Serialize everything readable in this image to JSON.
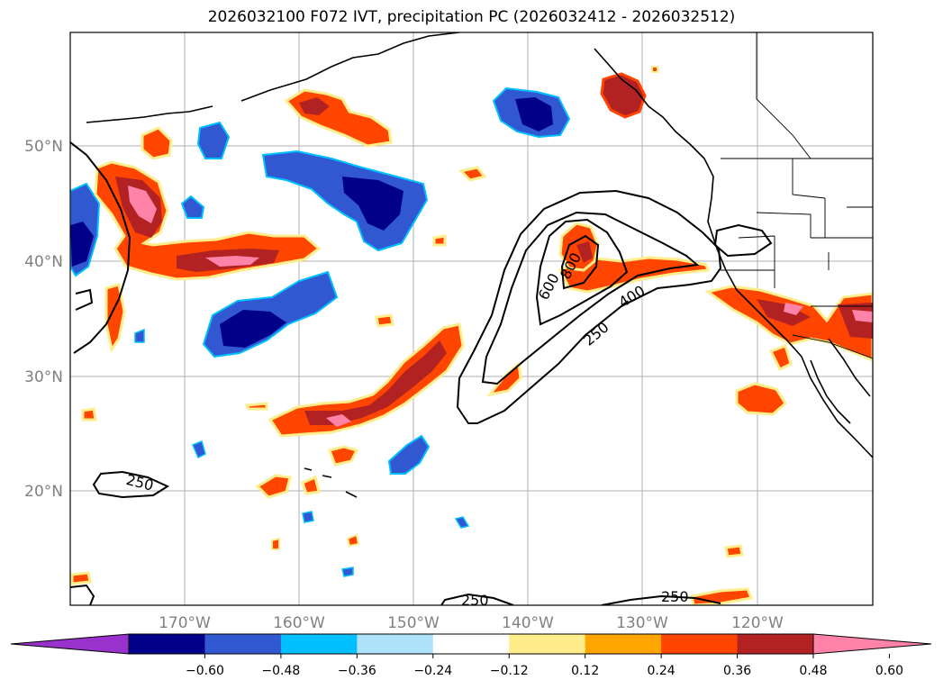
{
  "title": "2026032100 F072 IVT, precipitation PC (2026032412 - 2026032512)",
  "lat_labels": [
    "50°N",
    "40°N",
    "30°N",
    "20°N"
  ],
  "lon_labels": [
    "170°W",
    "160°W",
    "150°W",
    "140°W",
    "130°W",
    "120°W"
  ],
  "colorbar": {
    "colors": [
      "#9932cc",
      "#00008b",
      "#3158d0",
      "#00bfff",
      "#aee2fa",
      "#ffffff",
      "#ffec8b",
      "#ffa500",
      "#ff4500",
      "#b22222",
      "#ff83a8"
    ],
    "tick_labels": [
      "−0.60",
      "−0.48",
      "−0.36",
      "−0.24",
      "−0.12",
      "0.12",
      "0.24",
      "0.36",
      "0.48",
      "0.60"
    ]
  },
  "contour_labels": {
    "c250_west": "250",
    "c600": "600",
    "c800": "800",
    "c400": "400",
    "c250_main": "250",
    "c250_south": "250",
    "c250_southeast": "250"
  },
  "colors": {
    "neg_strong": "#00008b",
    "neg_mid": "#3158d0",
    "neg_light": "#00bfff",
    "pos_yellow": "#ffec8b",
    "pos_orange": "#ffa500",
    "pos_red": "#ff4500",
    "pos_dark": "#b22222",
    "pos_pink": "#ff83a8"
  }
}
